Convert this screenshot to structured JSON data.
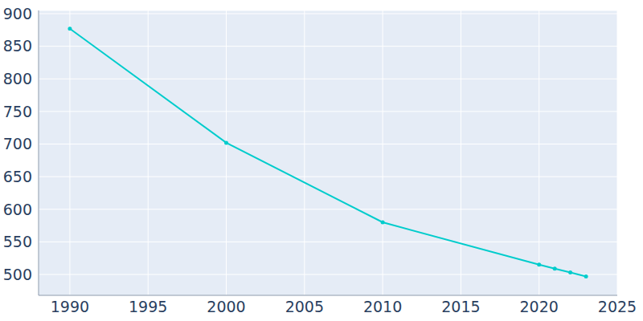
{
  "chart_data": {
    "type": "line",
    "x": [
      1990,
      2000,
      2010,
      2020,
      2021,
      2022,
      2023
    ],
    "values": [
      877,
      702,
      580,
      515,
      509,
      503,
      497
    ],
    "color": "#00cccc",
    "marker": "circle",
    "xlim": [
      1988,
      2025
    ],
    "xticks": [
      1990,
      1995,
      2000,
      2005,
      2010,
      2015,
      2020,
      2025
    ],
    "ylim": [
      468,
      905
    ],
    "yticks": [
      500,
      550,
      600,
      650,
      700,
      750,
      800,
      850,
      900
    ],
    "grid": true
  }
}
